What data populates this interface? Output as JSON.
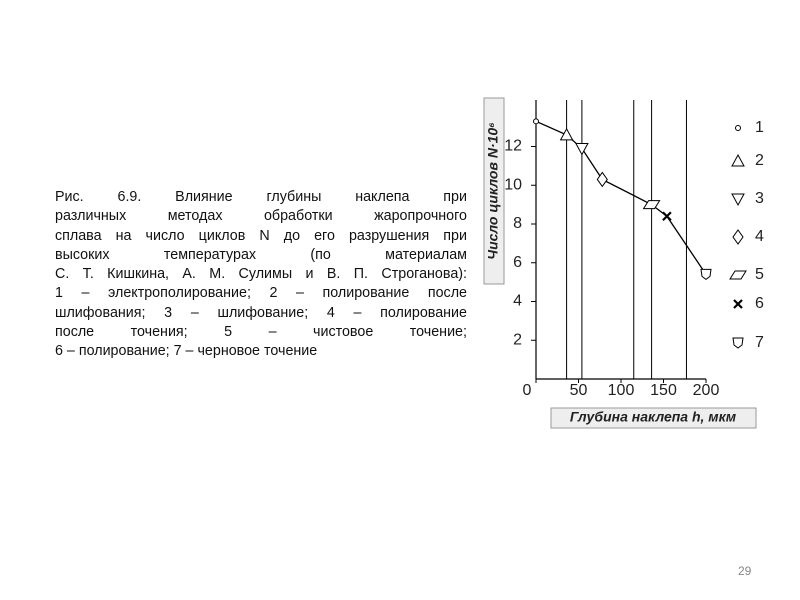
{
  "caption": {
    "lines": [
      "Рис. 6.9. Влияние глубины наклепа при",
      "различных методах обработки жаропрочного",
      "сплава на число циклов N до его разрушения при",
      "высоких температурах (по материалам",
      "С. Т. Кишкина, А. М. Сулимы и В. П. Строганова):",
      "1 – электрополирование; 2 – полирование после",
      "шлифования; 3 – шлифование; 4 – полирование",
      "после точения; 5 – чистовое точение;",
      "6 – полирование; 7 – черновое точение"
    ]
  },
  "page_number": "29",
  "chart_data": {
    "type": "line",
    "x_label": "Глубина наклепа h, мкм",
    "y_label": "Число циклов N·10⁶",
    "xlim": [
      0,
      200
    ],
    "ylim": [
      0,
      14.4
    ],
    "xticks": [
      0,
      50,
      100,
      150,
      200
    ],
    "yticks": [
      2,
      4,
      6,
      8,
      10,
      12
    ],
    "x_gridlines": [
      36,
      54,
      115,
      136,
      177
    ],
    "line_color": "#000000",
    "series": [
      {
        "name": "1",
        "marker": "circle",
        "x": [
          0
        ],
        "values": [
          13.3
        ]
      },
      {
        "name": "2",
        "marker": "triangle-up",
        "x": [
          36
        ],
        "values": [
          12.6
        ]
      },
      {
        "name": "3",
        "marker": "triangle-down",
        "x": [
          54
        ],
        "values": [
          11.9
        ]
      },
      {
        "name": "4",
        "marker": "diamond",
        "x": [
          78
        ],
        "values": [
          10.3
        ]
      },
      {
        "name": "5",
        "marker": "parallelogram",
        "x": [
          136
        ],
        "values": [
          9.0
        ]
      },
      {
        "name": "6",
        "marker": "cross",
        "x": [
          154
        ],
        "values": [
          8.4
        ]
      },
      {
        "name": "7",
        "marker": "shield",
        "x": [
          200
        ],
        "values": [
          5.4
        ]
      }
    ]
  }
}
